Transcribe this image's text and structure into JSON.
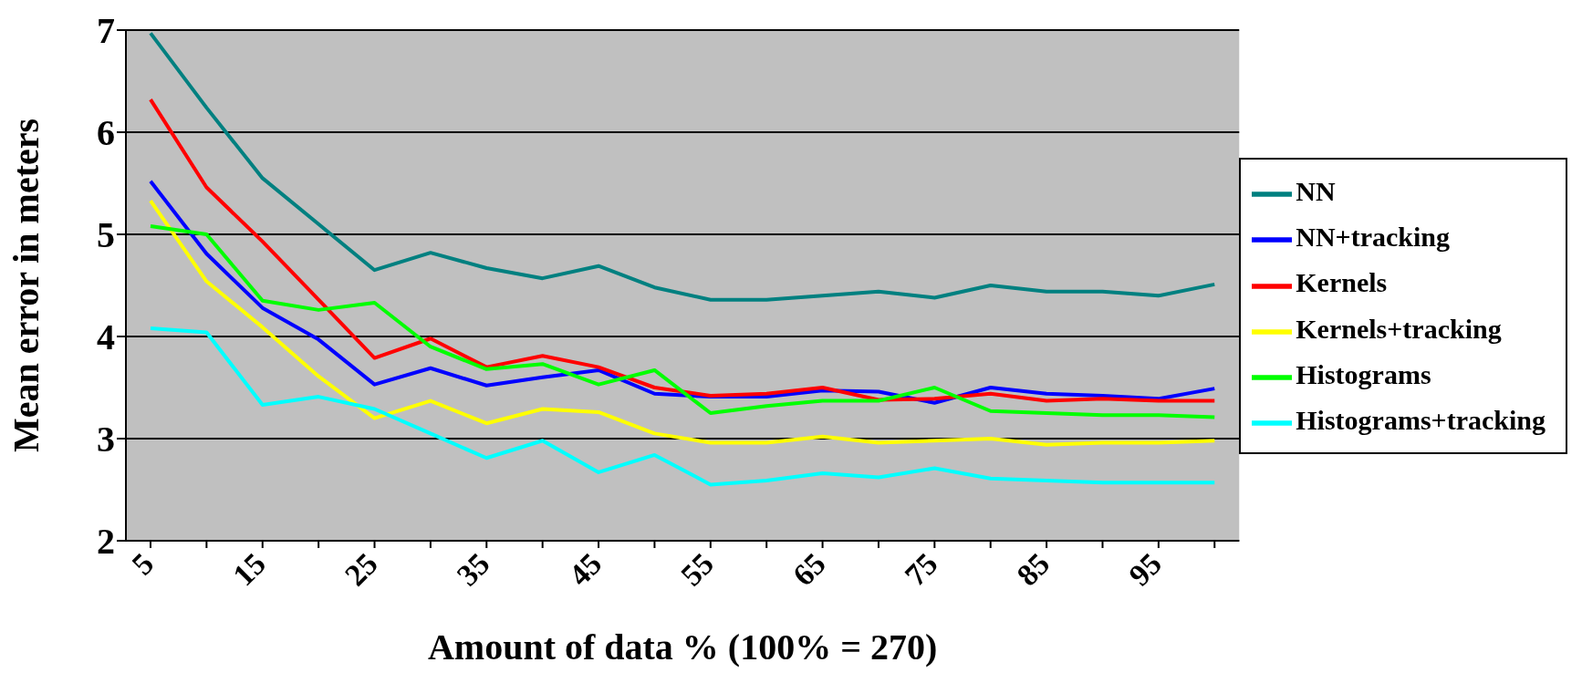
{
  "chart_data": {
    "type": "line",
    "xlabel": "Amount of data % (100% = 270)",
    "ylabel": "Mean error in meters",
    "categories": [
      "5",
      null,
      "15",
      null,
      "25",
      null,
      "35",
      null,
      "45",
      null,
      "55",
      null,
      "65",
      null,
      "75",
      null,
      "85",
      null,
      "95",
      null
    ],
    "ylim": [
      2,
      7
    ],
    "yticks": [
      2,
      3,
      4,
      5,
      6,
      7
    ],
    "grid": "y",
    "legend": "right",
    "series": [
      {
        "name": "NN",
        "color": "#008080",
        "values": [
          6.97,
          6.24,
          5.55,
          5.1,
          4.65,
          4.82,
          4.67,
          4.57,
          4.69,
          4.48,
          4.36,
          4.36,
          4.4,
          4.44,
          4.38,
          4.5,
          4.44,
          4.44,
          4.4,
          4.51
        ]
      },
      {
        "name": "NN+tracking",
        "color": "#0000ff",
        "values": [
          5.52,
          4.81,
          4.28,
          3.97,
          3.53,
          3.69,
          3.52,
          3.6,
          3.67,
          3.44,
          3.41,
          3.41,
          3.47,
          3.46,
          3.35,
          3.5,
          3.44,
          3.42,
          3.39,
          3.49
        ]
      },
      {
        "name": "Kernels",
        "color": "#ff0000",
        "values": [
          6.32,
          5.46,
          4.93,
          4.36,
          3.79,
          3.98,
          3.7,
          3.81,
          3.7,
          3.5,
          3.42,
          3.44,
          3.5,
          3.38,
          3.39,
          3.44,
          3.37,
          3.39,
          3.37,
          3.37
        ]
      },
      {
        "name": "Kernels+tracking",
        "color": "#ffff00",
        "values": [
          5.33,
          4.54,
          4.09,
          3.61,
          3.2,
          3.37,
          3.15,
          3.29,
          3.26,
          3.05,
          2.96,
          2.96,
          3.02,
          2.96,
          2.98,
          3.0,
          2.94,
          2.96,
          2.96,
          2.98
        ]
      },
      {
        "name": "Histograms",
        "color": "#00ff00",
        "values": [
          5.08,
          5.0,
          4.35,
          4.26,
          4.33,
          3.9,
          3.68,
          3.73,
          3.53,
          3.67,
          3.25,
          3.32,
          3.37,
          3.37,
          3.5,
          3.27,
          3.25,
          3.23,
          3.23,
          3.21
        ]
      },
      {
        "name": "Histograms+tracking",
        "color": "#00ffff",
        "values": [
          4.08,
          4.04,
          3.33,
          3.41,
          3.29,
          3.05,
          2.81,
          2.98,
          2.67,
          2.84,
          2.55,
          2.59,
          2.66,
          2.62,
          2.71,
          2.61,
          2.59,
          2.57,
          2.57,
          2.57
        ]
      }
    ]
  }
}
